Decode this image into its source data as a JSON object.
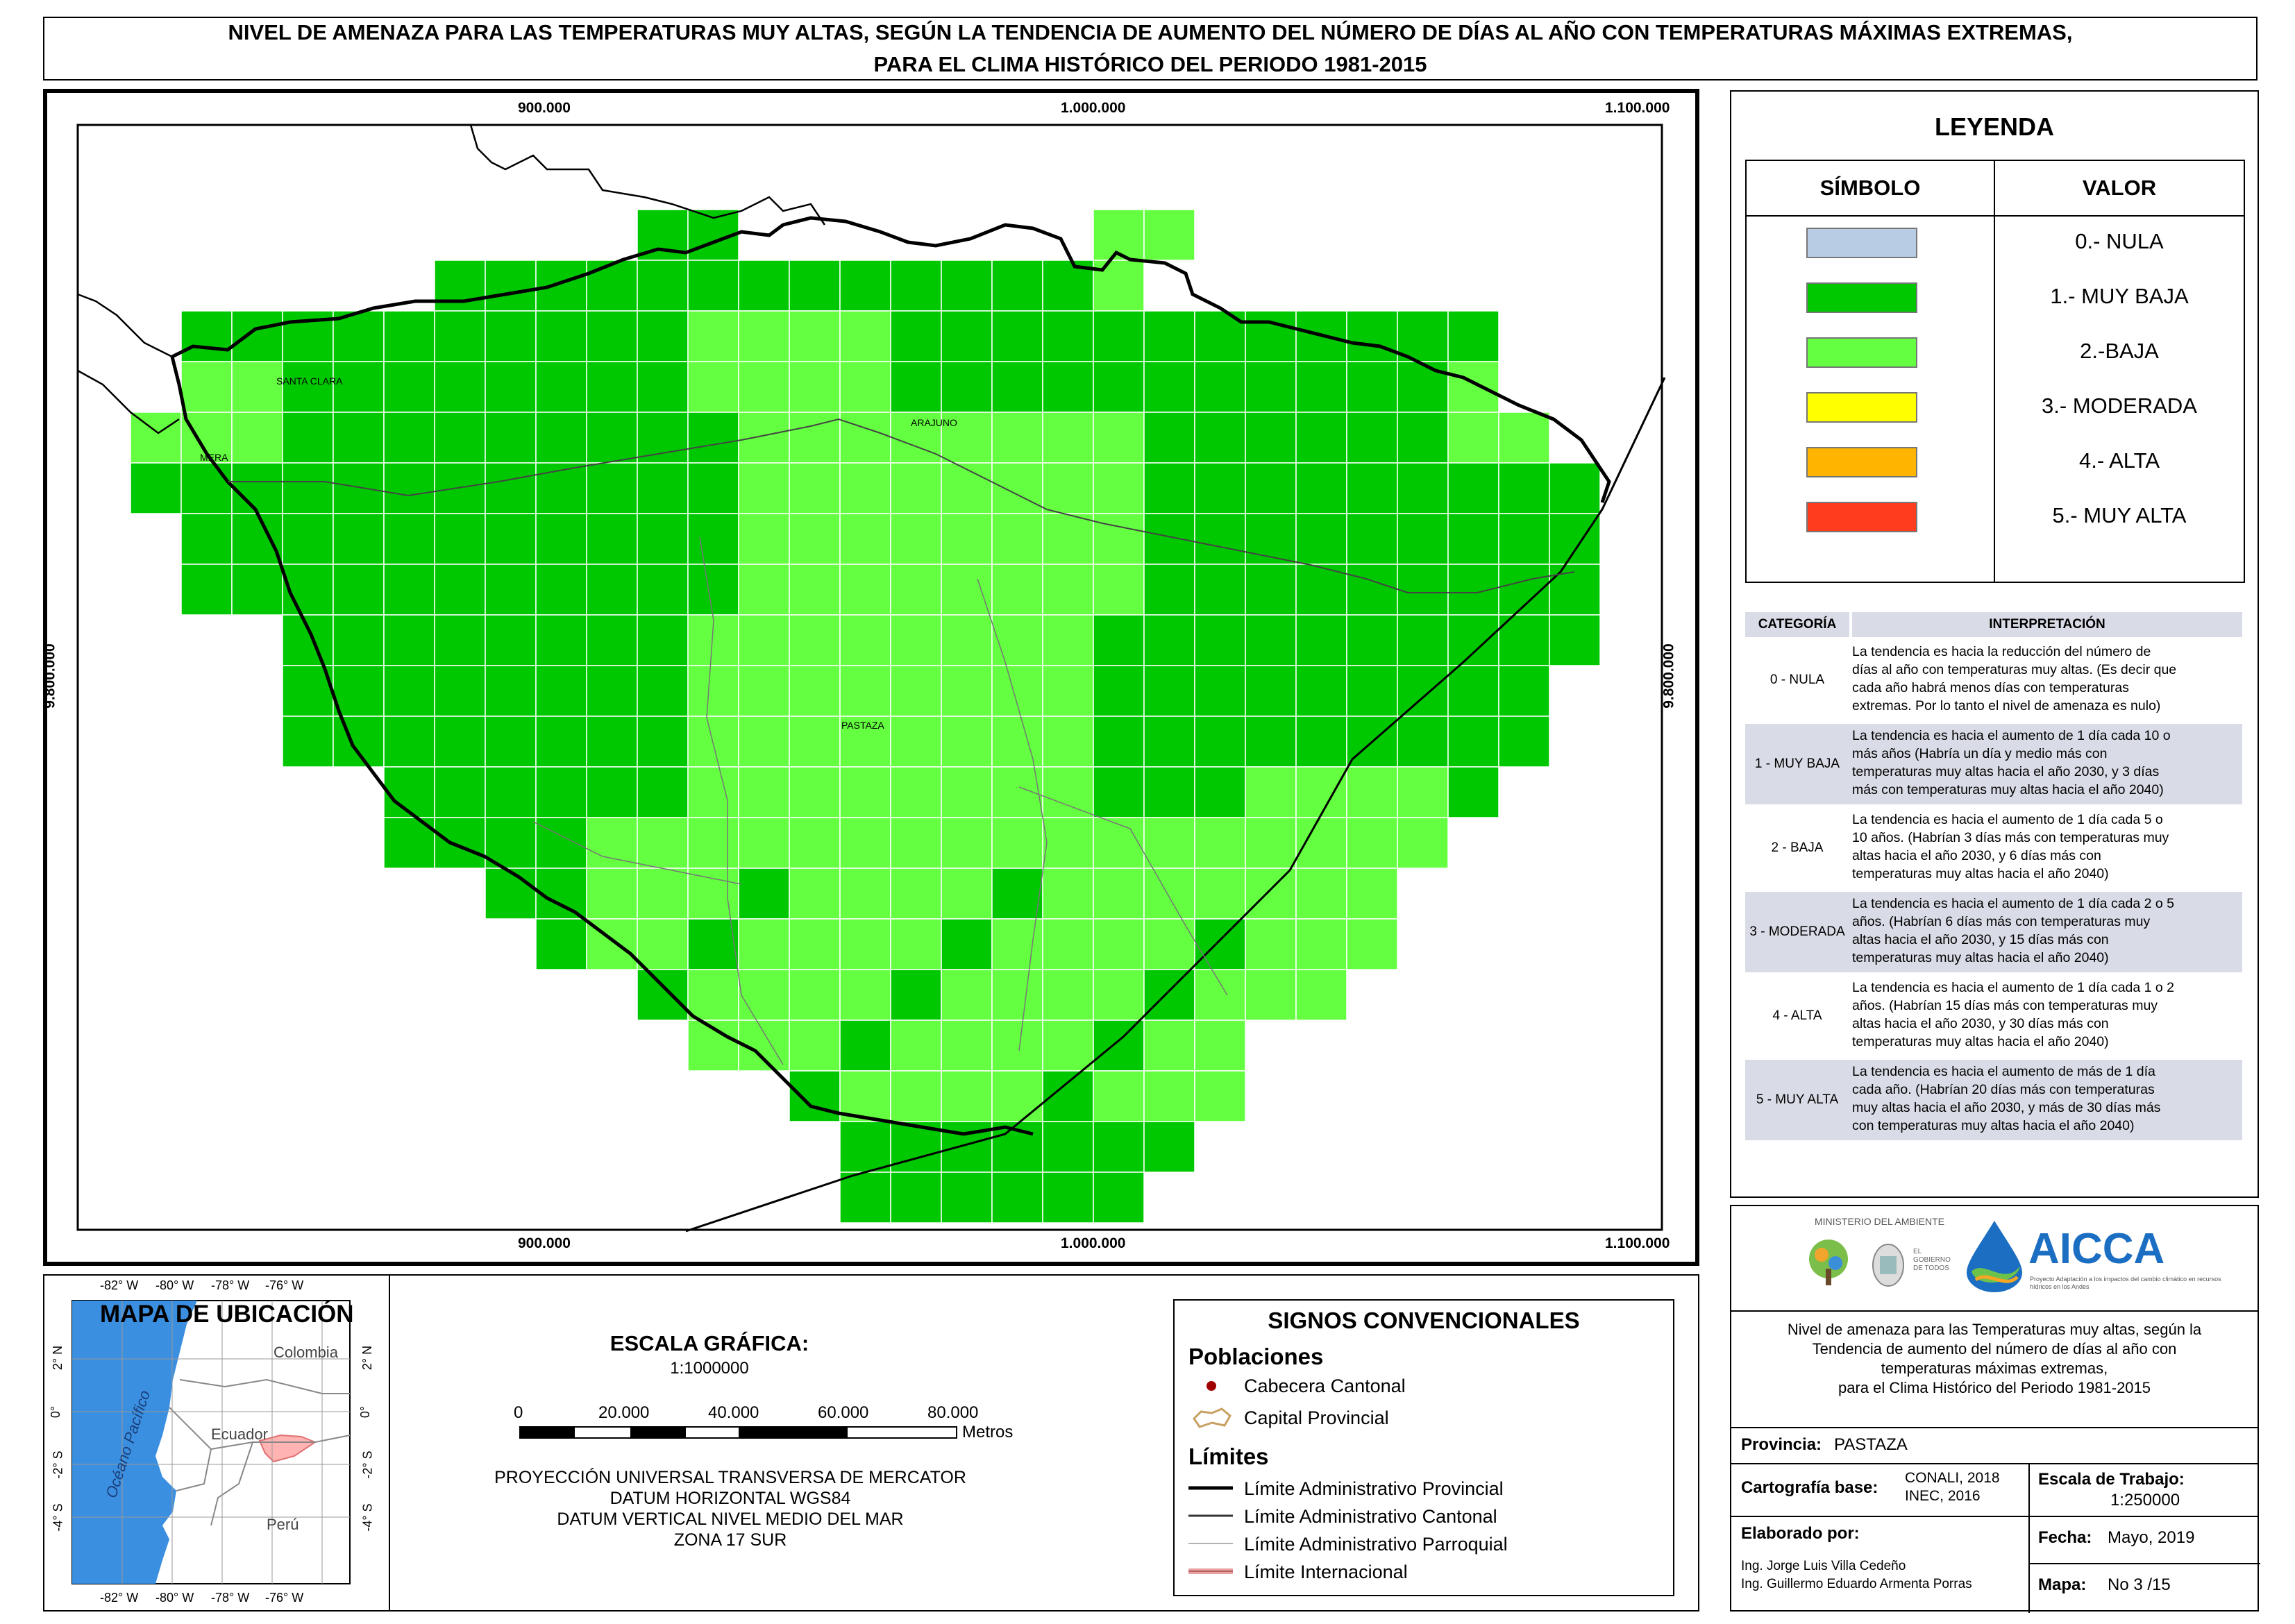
{
  "title": {
    "line1": "NIVEL DE AMENAZA PARA LAS TEMPERATURAS MUY ALTAS, SEGÚN LA TENDENCIA DE AUMENTO DEL NÚMERO DE DÍAS AL AÑO CON TEMPERATURAS MÁXIMAS EXTREMAS,",
    "line2": "PARA EL CLIMA HISTÓRICO DEL PERIODO 1981-2015"
  },
  "map": {
    "x_ticks": [
      "900.000",
      "1.000.000",
      "1.100.000"
    ],
    "y_tick": "9.800.000",
    "places": [
      "SANTA CLARA",
      "ARAJUNO",
      "MERA",
      "PASTAZA"
    ],
    "colors": {
      "muy_baja": "#00c800",
      "baja": "#64ff40",
      "grid_line": "#ffffff",
      "boundary": "#000000"
    }
  },
  "legend": {
    "title": "LEYENDA",
    "col_symbol": "SÍMBOLO",
    "col_value": "VALOR",
    "items": [
      {
        "label": "0.- NULA",
        "color": "#b8cce4"
      },
      {
        "label": "1.- MUY BAJA",
        "color": "#00c800"
      },
      {
        "label": "2.-BAJA",
        "color": "#64ff40"
      },
      {
        "label": "3.- MODERADA",
        "color": "#ffff00"
      },
      {
        "label": "4.- ALTA",
        "color": "#ffb400"
      },
      {
        "label": "5.- MUY ALTA",
        "color": "#ff3c1e"
      }
    ]
  },
  "interpretation": {
    "col_category": "CATEGORÍA",
    "col_interp": "INTERPRETACIÓN",
    "rows": [
      {
        "cat": "0 - NULA",
        "lines": [
          "La tendencia es hacia la reducción del número de",
          "días al año con temperaturas muy altas. (Es decir que",
          "cada año habrá menos días con temperaturas",
          "extremas. Por lo tanto el nivel de amenaza es nulo)"
        ]
      },
      {
        "cat": "1 - MUY BAJA",
        "lines": [
          "La tendencia es hacia el aumento de 1 día cada 10 o",
          "más años (Habría un día y medio más con",
          "temperaturas muy altas hacia el año 2030, y 3 días",
          "más con temperaturas muy altas hacia el año 2040)"
        ]
      },
      {
        "cat": "2 - BAJA",
        "lines": [
          "La tendencia es hacia el aumento de 1 día cada 5 o",
          "10 años. (Habrían 3 días más con temperaturas muy",
          "altas hacia el año 2030, y 6 días más con",
          "temperaturas muy altas hacia el año 2040)"
        ]
      },
      {
        "cat": "3 - MODERADA",
        "lines": [
          "La tendencia es hacia el aumento de 1 día cada 2 o 5",
          "años. (Habrían 6 días más con temperaturas muy",
          "altas hacia el año 2030, y 15 días más con",
          "temperaturas muy altas hacia el año 2040)"
        ]
      },
      {
        "cat": "4 - ALTA",
        "lines": [
          "La tendencia es hacia el aumento de 1 día cada 1 o 2",
          "años. (Habrían 15 días más con temperaturas muy",
          "altas hacia el año 2030, y 30 días más con",
          "temperaturas muy altas hacia el año 2040)"
        ]
      },
      {
        "cat": "5 - MUY ALTA",
        "lines": [
          "La tendencia es hacia el aumento de más de 1 día",
          "cada año. (Habrían 20 días más con temperaturas",
          "muy altas hacia el año 2030, y más de 30 días más",
          "con temperaturas muy altas hacia el año 2040)"
        ]
      }
    ]
  },
  "inset": {
    "title": "MAPA DE UBICACIÓN",
    "lon_ticks": [
      "-82° W",
      "-80° W",
      "-78° W",
      "-76° W"
    ],
    "lat_ticks": [
      "2° N",
      "0°",
      "-2° S",
      "-4° S"
    ],
    "labels": {
      "colombia": "Colombia",
      "ecuador": "Ecuador",
      "peru": "Perú",
      "ocean": "Océano Pacífico"
    },
    "colors": {
      "ocean": "#3b8fe0",
      "highlight": "#ffb3b3"
    }
  },
  "scale": {
    "title": "ESCALA GRÁFICA:",
    "ratio": "1:1000000",
    "ticks": [
      "0",
      "20.000",
      "40.000",
      "60.000",
      "80.000"
    ],
    "unit": "Metros",
    "projection": [
      "PROYECCIÓN UNIVERSAL TRANSVERSA DE MERCATOR",
      "DATUM HORIZONTAL WGS84",
      "DATUM VERTICAL NIVEL MEDIO DEL MAR",
      "ZONA 17 SUR"
    ]
  },
  "signs": {
    "title": "SIGNOS CONVENCIONALES",
    "poblaciones": "Poblaciones",
    "cabecera": "Cabecera Cantonal",
    "capital": "Capital Provincial",
    "limites": "Límites",
    "limit_items": [
      "Límite Administrativo Provincial",
      "Límite Administrativo Cantonal",
      "Límite Administrativo Parroquial",
      "Límite Internacional"
    ]
  },
  "info": {
    "logo_text_ministerio": "MINISTERIO DEL AMBIENTE",
    "logo_text_gobierno": "EL GOBIERNO DE TODOS",
    "logo_text_aicca": "AICCA",
    "aicca_sub": "Proyecto Adaptación a los impactos del cambio climático en recursos hídricos en los Andes",
    "description": [
      "Nivel de amenaza para las Temperaturas muy altas, según la",
      "Tendencia de aumento del número de días al año con",
      "temperaturas máximas extremas,",
      "para el Clima Histórico del Periodo 1981-2015"
    ],
    "provincia_label": "Provincia:",
    "provincia_value": "PASTAZA",
    "cartografia_label": "Cartografía base:",
    "cartografia_value1": "CONALI, 2018",
    "cartografia_value2": "INEC, 2016",
    "escala_label": "Escala de Trabajo:",
    "escala_value": "1:250000",
    "elaborado_label": "Elaborado por:",
    "elaborado_1": "Ing. Jorge Luis Villa Cedeño",
    "elaborado_2": "Ing. Guillermo Eduardo Armenta Porras",
    "fecha_label": "Fecha:",
    "fecha_value": "Mayo, 2019",
    "mapa_label": "Mapa:",
    "mapa_value": "No 3 /15"
  }
}
